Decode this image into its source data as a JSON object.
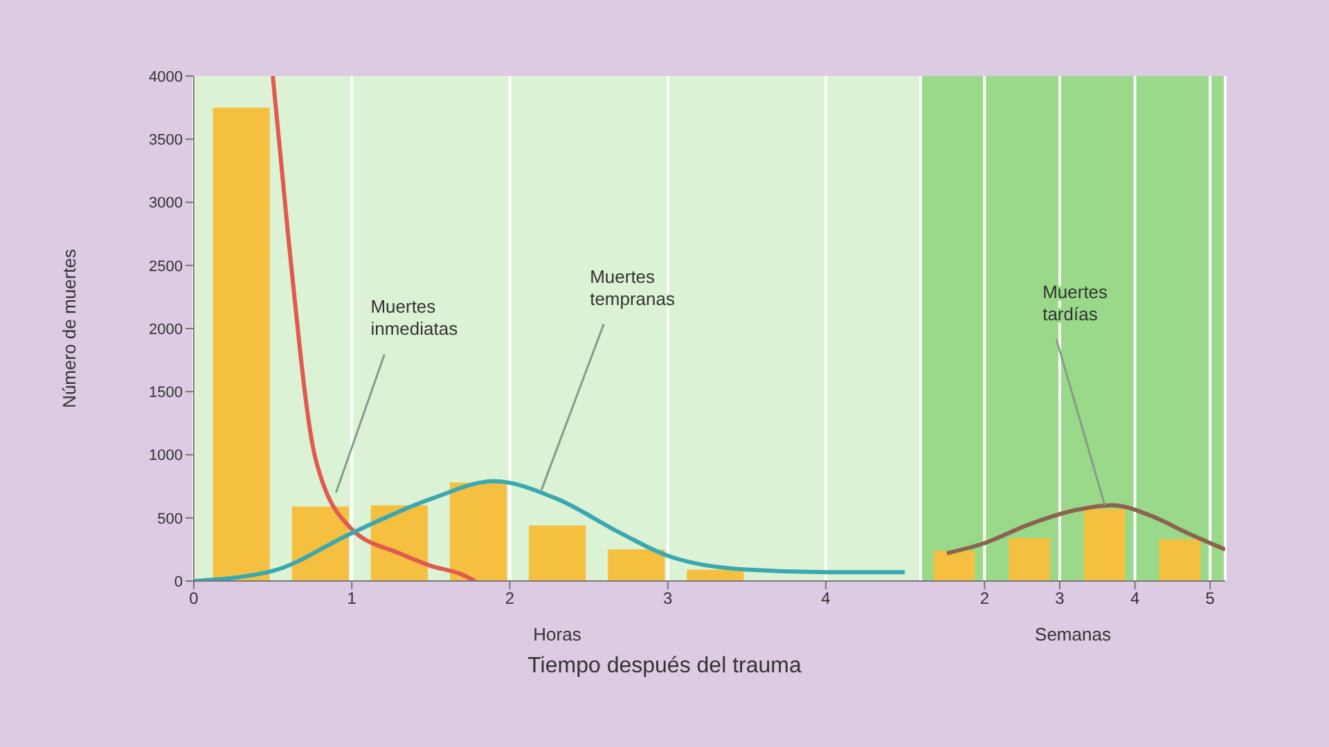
{
  "chart_data": [
    {
      "type": "bar",
      "xlabel": "Horas",
      "ylabel": "Número de muertes",
      "xlim": [
        0,
        4.6
      ],
      "xticks": [
        0,
        1,
        2,
        3,
        4
      ],
      "ylim": [
        0,
        4000
      ],
      "yticks": [
        0,
        500,
        1000,
        1500,
        2000,
        2500,
        3000,
        3500,
        4000
      ],
      "grid": "x",
      "legend": false,
      "series": [
        {
          "color": "#f5c040",
          "x": [
            0.3,
            0.8,
            1.3,
            1.8,
            2.3,
            2.8,
            3.3
          ],
          "values": [
            3750,
            590,
            600,
            780,
            440,
            250,
            90
          ]
        },
        {
          "type": "line",
          "color": "#e05a50",
          "x": [
            0.5,
            0.6,
            0.77,
            1.0,
            1.3,
            1.5,
            1.7,
            1.78
          ],
          "values": [
            4000,
            2700,
            970,
            410,
            220,
            120,
            50,
            0
          ]
        },
        {
          "type": "line",
          "color": "#3aa8b0",
          "x": [
            0,
            0.5,
            1.0,
            1.5,
            1.9,
            2.3,
            2.7,
            3.0,
            3.5,
            4.0,
            4.5
          ],
          "values": [
            0,
            80,
            380,
            650,
            790,
            650,
            380,
            200,
            90,
            70,
            70
          ]
        }
      ],
      "annotations": [
        {
          "text": "Muertes inmediatas",
          "x": 0.9,
          "y": 700
        },
        {
          "text": "Muertes tempranas",
          "x": 2.2,
          "y": 720
        },
        "Tiempo después del trauma"
      ]
    },
    {
      "type": "bar",
      "xlabel": "Semanas",
      "xlim": [
        1.15,
        5.2
      ],
      "xticks": [
        2,
        3,
        4,
        5
      ],
      "ylim": [
        0,
        4000
      ],
      "yticks": [
        0,
        500,
        1000,
        1500,
        2000,
        2500,
        3000,
        3500,
        4000
      ],
      "tick_labels": "x",
      "grid": "x",
      "legend": false,
      "series": [
        {
          "color": "#f5c040",
          "x": [
            1.6,
            2.6,
            3.6,
            4.6
          ],
          "values": [
            240,
            340,
            570,
            330
          ]
        },
        {
          "type": "line",
          "color": "#8a6450",
          "x": [
            1.5,
            2.0,
            2.6,
            3.2,
            3.7,
            4.2,
            4.7,
            5.2
          ],
          "values": [
            220,
            300,
            450,
            560,
            600,
            520,
            380,
            250
          ]
        }
      ],
      "annotations": [
        {
          "text": "Muertes tardías",
          "x": 3.6,
          "y": 600
        }
      ]
    }
  ]
}
